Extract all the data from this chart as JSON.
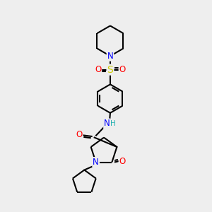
{
  "bg_color": "#eeeeee",
  "atom_colors": {
    "C": "#000000",
    "N": "#0000ff",
    "O": "#ff0000",
    "S": "#cccc00",
    "H": "#20b0b0"
  },
  "bond_color": "#000000",
  "bond_width": 1.5,
  "font_size": 8.5
}
